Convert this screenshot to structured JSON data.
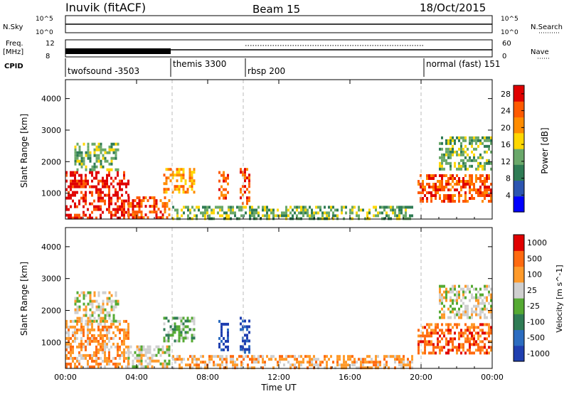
{
  "header": {
    "station": "Inuvik (fitACF)",
    "beam": "Beam 15",
    "date": "18/Oct/2015"
  },
  "top_panels": {
    "nsky_label": "N.Sky",
    "nsky_ticks": [
      "10^5",
      "10^0"
    ],
    "nsearch_label": "N.Search",
    "nsearch_ticks": [
      "10^5",
      "10^0"
    ],
    "freq_label": "Freq.",
    "freq_unit": "[MHz]",
    "freq_ticks": [
      "12",
      "8"
    ],
    "nave_label": "Nave",
    "nave_ticks": [
      "60",
      "0"
    ],
    "cpid_label": "CPID",
    "cpid_segments": [
      {
        "label": "twofsound -3503",
        "start_h": 0.0
      },
      {
        "label": "themis 3300",
        "start_h": 6.0
      },
      {
        "label": "rbsp 200",
        "start_h": 10.0
      },
      {
        "label": "normal (fast) 151",
        "start_h": 20.0
      }
    ]
  },
  "chart_data": [
    {
      "type": "heatmap",
      "ylabel": "Slant Range [km]",
      "xlabel": "",
      "x_ticks": [
        "00:00",
        "04:00",
        "08:00",
        "12:00",
        "16:00",
        "20:00",
        "00:00"
      ],
      "xlim_hours": [
        0,
        24
      ],
      "y_ticks": [
        "1000",
        "2000",
        "3000",
        "4000"
      ],
      "ylim": [
        180,
        4600
      ],
      "colorbar_label": "Power [dB]",
      "colorbar_ticks": [
        "4",
        "8",
        "12",
        "16",
        "20",
        "24",
        "28"
      ],
      "colorbar_range": [
        0,
        30
      ],
      "colorbar_colors": [
        "#0000ff",
        "#2c55b0",
        "#2f7c55",
        "#6aa86a",
        "#ffd700",
        "#ff8c00",
        "#ff5a00",
        "#e00000"
      ],
      "echo_regions": [
        {
          "t0": 0.0,
          "t1": 3.5,
          "r0": 200,
          "r1": 1700,
          "level": 7
        },
        {
          "t0": 0.5,
          "t1": 3.0,
          "r0": 1700,
          "r1": 2600,
          "level": 3
        },
        {
          "t0": 3.5,
          "t1": 5.8,
          "r0": 200,
          "r1": 900,
          "level": 6
        },
        {
          "t0": 5.5,
          "t1": 7.2,
          "r0": 1000,
          "r1": 1800,
          "level": 5
        },
        {
          "t0": 8.6,
          "t1": 9.2,
          "r0": 800,
          "r1": 1700,
          "level": 6
        },
        {
          "t0": 9.8,
          "t1": 10.3,
          "r0": 700,
          "r1": 1800,
          "level": 6
        },
        {
          "t0": 6.0,
          "t1": 19.5,
          "r0": 200,
          "r1": 600,
          "level": 3
        },
        {
          "t0": 19.8,
          "t1": 24.0,
          "r0": 700,
          "r1": 1600,
          "level": 6
        },
        {
          "t0": 21.0,
          "t1": 24.0,
          "r0": 1800,
          "r1": 2800,
          "level": 3
        }
      ]
    },
    {
      "type": "heatmap",
      "ylabel": "Slant Range [km]",
      "xlabel": "Time UT",
      "x_ticks": [
        "00:00",
        "04:00",
        "08:00",
        "12:00",
        "16:00",
        "20:00",
        "00:00"
      ],
      "xlim_hours": [
        0,
        24
      ],
      "y_ticks": [
        "1000",
        "2000",
        "3000",
        "4000"
      ],
      "ylim": [
        180,
        4600
      ],
      "colorbar_label": "Velocity [m s^-1]",
      "colorbar_ticks": [
        "1000",
        "500",
        "100",
        "25",
        "-25",
        "-100",
        "-500",
        "-1000"
      ],
      "colorbar_colors": [
        "#1f3fb0",
        "#2c6cc0",
        "#2f7c55",
        "#55aa33",
        "#cfcfcf",
        "#ff9a2a",
        "#ff6a10",
        "#e00000"
      ],
      "echo_regions": [
        {
          "t0": 0.0,
          "t1": 3.5,
          "r0": 200,
          "r1": 1700,
          "level": 5
        },
        {
          "t0": 0.5,
          "t1": 3.0,
          "r0": 1700,
          "r1": 2600,
          "level": 4
        },
        {
          "t0": 3.5,
          "t1": 5.8,
          "r0": 200,
          "r1": 900,
          "level": 4
        },
        {
          "t0": 5.5,
          "t1": 7.2,
          "r0": 1000,
          "r1": 1800,
          "level": 3
        },
        {
          "t0": 8.6,
          "t1": 9.2,
          "r0": 800,
          "r1": 1700,
          "level": 0
        },
        {
          "t0": 9.8,
          "t1": 10.3,
          "r0": 700,
          "r1": 1800,
          "level": 0
        },
        {
          "t0": 6.0,
          "t1": 19.5,
          "r0": 200,
          "r1": 600,
          "level": 5
        },
        {
          "t0": 19.8,
          "t1": 24.0,
          "r0": 700,
          "r1": 1600,
          "level": 6
        },
        {
          "t0": 21.0,
          "t1": 24.0,
          "r0": 1800,
          "r1": 2800,
          "level": 4
        }
      ]
    }
  ]
}
